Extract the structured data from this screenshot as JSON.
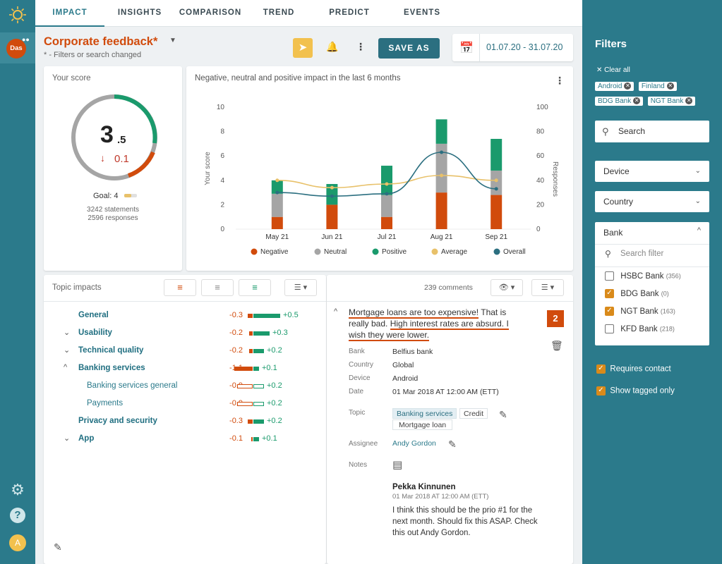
{
  "nav": {
    "tabs": [
      "IMPACT",
      "INSIGHTS",
      "COMPARISON",
      "TREND",
      "PREDICT",
      "EVENTS"
    ],
    "active": "IMPACT"
  },
  "user": {
    "rail_badge": "Das",
    "avatar": "A"
  },
  "header": {
    "title": "Corporate feedback*",
    "subtitle": "* - Filters or search changed",
    "save_as": "SAVE AS",
    "date_range": "01.07.20 - 31.07.20"
  },
  "score": {
    "label": "Your score",
    "main": "3",
    "decimal": ".5",
    "delta": "0.1",
    "goal": "Goal: 4",
    "statements": "3242 statements",
    "responses": "2596 responses"
  },
  "chart_data": {
    "type": "bar",
    "title": "Negative, neutral and positive impact in the last 6 months",
    "categories": [
      "May 21",
      "Jun 21",
      "Jul 21",
      "Aug 21",
      "Sep 21"
    ],
    "ylabel": "Your score",
    "y2label": "Responses",
    "ylim": [
      0,
      10
    ],
    "y2lim": [
      0,
      100
    ],
    "yticks": [
      "0",
      "2",
      "4",
      "6",
      "8",
      "10"
    ],
    "y2ticks": [
      "0",
      "20",
      "40",
      "60",
      "80",
      "100"
    ],
    "series": [
      {
        "name": "Negative",
        "color": "#d14b0c",
        "values": [
          1.0,
          2.0,
          1.0,
          3.0,
          2.8
        ]
      },
      {
        "name": "Neutral",
        "color": "#a5a5a5",
        "values": [
          1.9,
          0.0,
          1.8,
          4.0,
          2.0
        ]
      },
      {
        "name": "Positive",
        "color": "#1a9a6c",
        "values": [
          1.1,
          1.7,
          2.4,
          2.0,
          2.6
        ]
      },
      {
        "name": "Average",
        "color": "#e8c16a",
        "values": [
          40,
          34,
          37,
          44,
          40
        ]
      },
      {
        "name": "Overall",
        "color": "#2b6f80",
        "values": [
          30,
          27,
          29,
          63,
          33
        ]
      }
    ],
    "legend": "bottom"
  },
  "topics": {
    "title": "Topic impacts",
    "rows": [
      {
        "name": "General",
        "neg": "-0.3",
        "pos": "+0.5",
        "negv": 0.3,
        "posv": 0.5,
        "bold": true,
        "chev": "",
        "indent": 0,
        "outline": false
      },
      {
        "name": "Usability",
        "neg": "-0.2",
        "pos": "+0.3",
        "negv": 0.2,
        "posv": 0.3,
        "bold": true,
        "chev": "v",
        "indent": 0,
        "outline": false
      },
      {
        "name": "Technical quality",
        "neg": "-0.2",
        "pos": "+0.2",
        "negv": 0.2,
        "posv": 0.2,
        "bold": true,
        "chev": "v",
        "indent": 0,
        "outline": false
      },
      {
        "name": "Banking services",
        "neg": "-1.1",
        "pos": "+0.1",
        "negv": 1.1,
        "posv": 0.1,
        "bold": true,
        "chev": "^",
        "indent": 0,
        "outline": false
      },
      {
        "name": "Banking services general",
        "neg": "-0.9",
        "pos": "+0.2",
        "negv": 0.9,
        "posv": 0.2,
        "bold": false,
        "chev": "",
        "indent": 1,
        "outline": true
      },
      {
        "name": "Payments",
        "neg": "-0.9",
        "pos": "+0.2",
        "negv": 0.9,
        "posv": 0.2,
        "bold": false,
        "chev": "",
        "indent": 1,
        "outline": true
      },
      {
        "name": "Privacy and security",
        "neg": "-0.3",
        "pos": "+0.2",
        "negv": 0.3,
        "posv": 0.2,
        "bold": true,
        "chev": "",
        "indent": 0,
        "outline": false
      },
      {
        "name": "App",
        "neg": "-0.1",
        "pos": "+0.1",
        "negv": 0.1,
        "posv": 0.1,
        "bold": true,
        "chev": "v",
        "indent": 0,
        "outline": false
      }
    ]
  },
  "comments": {
    "count": "239 comments",
    "text_1": "Mortgage loans are too expensive!",
    "text_2": " That is really bad. ",
    "text_3": "High interest rates are absurd.",
    "text_4": " I wish they were lower.",
    "badge": "2",
    "meta": [
      {
        "label": "Bank",
        "value": "Belfius bank"
      },
      {
        "label": "Country",
        "value": "Global"
      },
      {
        "label": "Device",
        "value": "Android"
      },
      {
        "label": "Date",
        "value": "01 Mar 2018 AT 12:00 AM (ETT)"
      }
    ],
    "topic_label": "Topic",
    "topics": [
      "Banking services",
      "Credit",
      "Mortgage loan"
    ],
    "assignee_label": "Assignee",
    "assignee": "Andy Gordon",
    "notes_label": "Notes",
    "note_author": "Pekka Kinnunen",
    "note_date": "01 Mar 2018 AT 12:00 AM (ETT)",
    "note_text": "I think this should be the prio #1 for the next month. Should fix this ASAP. Check this out Andy Gordon."
  },
  "filters": {
    "title": "Filters",
    "clear_all": "Clear all",
    "chips": [
      "Android",
      "Finland",
      "BDG Bank",
      "NGT Bank"
    ],
    "search": "Search",
    "device": "Device",
    "country": "Country",
    "bank": "Bank",
    "search_filter": "Search filter",
    "banks": [
      {
        "name": "HSBC Bank",
        "count": "(356)",
        "checked": false
      },
      {
        "name": "BDG Bank",
        "count": "(0)",
        "checked": true
      },
      {
        "name": "NGT Bank",
        "count": "(163)",
        "checked": true
      },
      {
        "name": "KFD Bank",
        "count": "(218)",
        "checked": false
      }
    ],
    "requires_contact": "Requires contact",
    "show_tagged": "Show tagged only"
  },
  "colors": {
    "accent": "#2b7a8b",
    "negative": "#d14b0c",
    "positive": "#1a9a6c"
  }
}
